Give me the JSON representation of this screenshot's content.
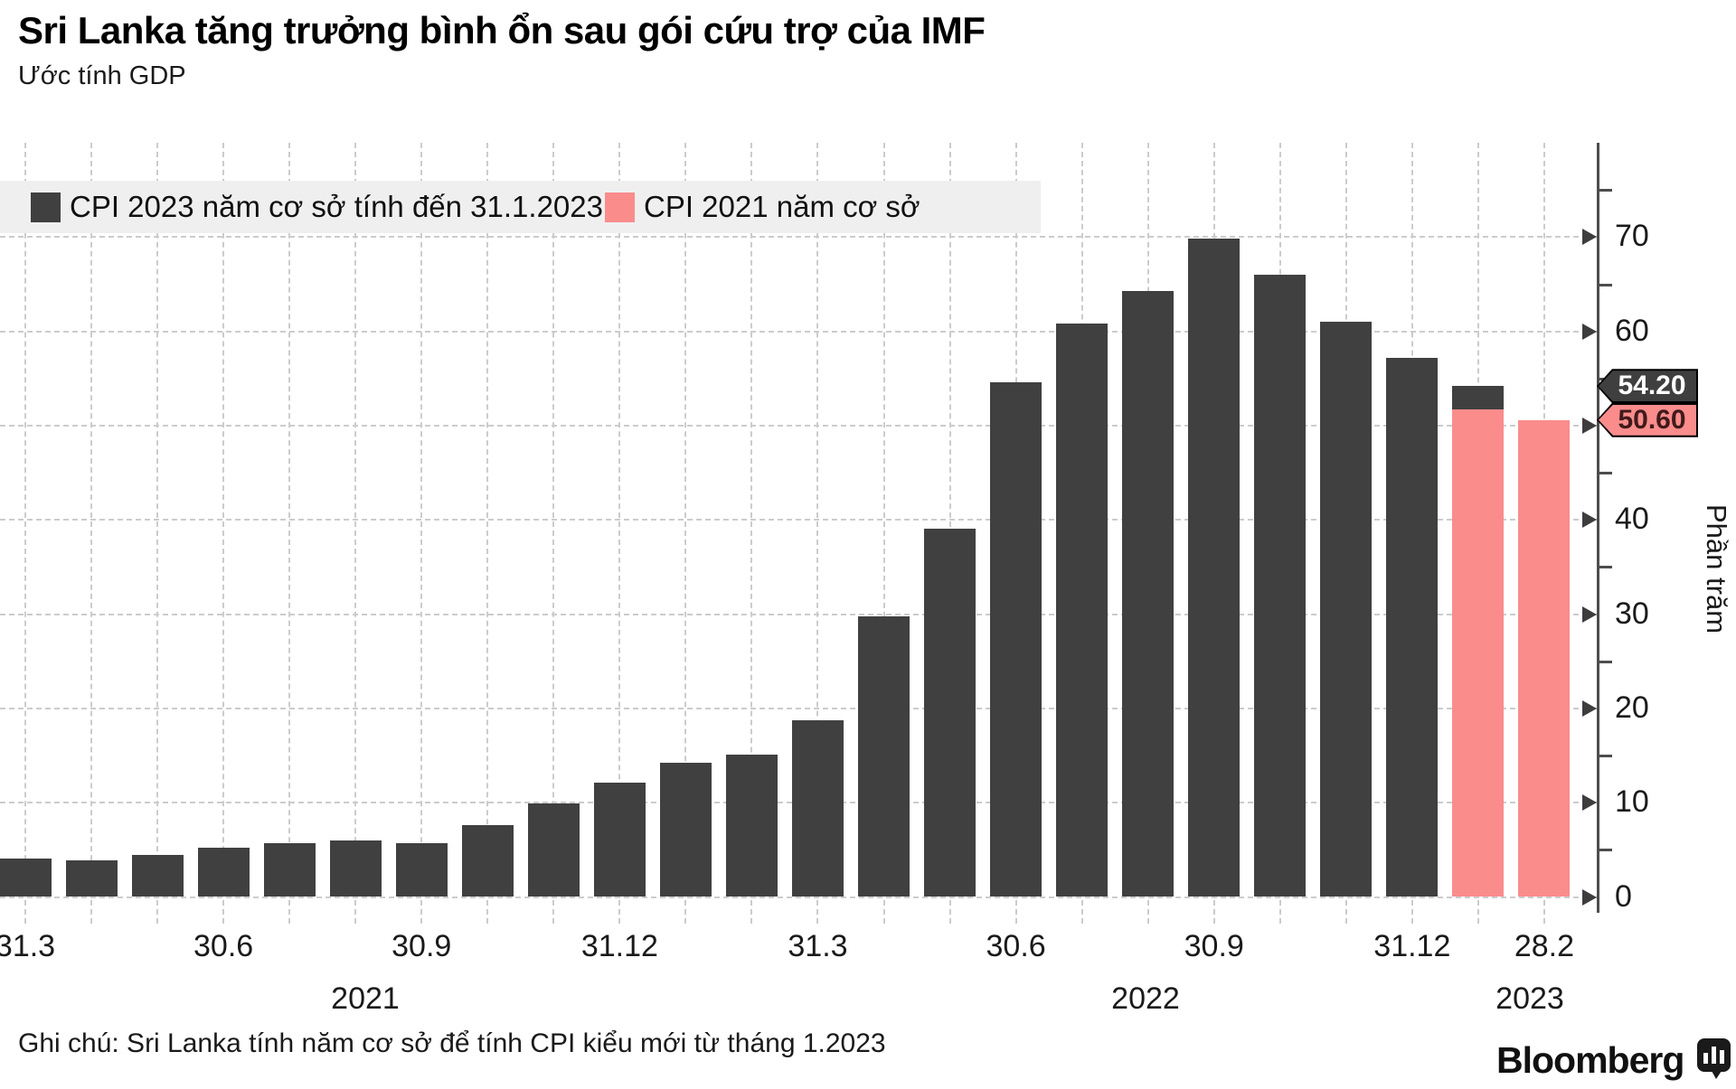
{
  "header": {
    "title": "Sri Lanka tăng trưởng bình ổn sau gói cứu trợ của IMF",
    "subtitle": "Ước tính GDP"
  },
  "legend": {
    "items": [
      {
        "label": "CPI 2023 năm cơ sở tính đến 31.1.2023",
        "color": "#404040"
      },
      {
        "label": "CPI 2021 năm cơ sở",
        "color": "#fa8c8c"
      }
    ]
  },
  "chart_data": {
    "type": "bar",
    "x": [
      "3.2021",
      "4.2021",
      "5.2021",
      "6.2021",
      "7.2021",
      "8.2021",
      "9.2021",
      "10.2021",
      "11.2021",
      "12.2021",
      "1.2022",
      "2.2022",
      "3.2022",
      "4.2022",
      "5.2022",
      "6.2022",
      "7.2022",
      "8.2022",
      "9.2022",
      "10.2022",
      "11.2022",
      "12.2022",
      "1.2023",
      "2.2023"
    ],
    "series": [
      {
        "name": "CPI 2023 năm cơ sở tính đến 31.1.2023",
        "color": "#404040",
        "values": [
          4.1,
          3.9,
          4.5,
          5.2,
          5.7,
          6.0,
          5.7,
          7.6,
          9.9,
          12.1,
          14.2,
          15.1,
          18.7,
          29.8,
          39.1,
          54.6,
          60.8,
          64.3,
          69.8,
          66.0,
          61.0,
          57.2,
          54.2,
          null
        ]
      },
      {
        "name": "CPI 2021 năm cơ sở",
        "color": "#fa8c8c",
        "values": [
          null,
          null,
          null,
          null,
          null,
          null,
          null,
          null,
          null,
          null,
          null,
          null,
          null,
          null,
          null,
          null,
          null,
          null,
          null,
          null,
          null,
          null,
          51.7,
          50.6
        ]
      }
    ],
    "title": "Sri Lanka tăng trưởng bình ổn sau gói cứu trợ của IMF",
    "xlabel": "",
    "ylabel": "Phần trăm",
    "ylim": [
      0,
      75
    ],
    "yticks": [
      0,
      10,
      20,
      30,
      40,
      50,
      60,
      70
    ],
    "grid": "dashed, horizontal every 10 and vertical every month",
    "legend_position": "top-left band",
    "xtick_labels": [
      {
        "label": "31.3",
        "month_index": 0
      },
      {
        "label": "30.6",
        "month_index": 3
      },
      {
        "label": "30.9",
        "month_index": 6
      },
      {
        "label": "31.12",
        "month_index": 9
      },
      {
        "label": "31.3",
        "month_index": 12
      },
      {
        "label": "30.6",
        "month_index": 15
      },
      {
        "label": "30.9",
        "month_index": 18
      },
      {
        "label": "31.12",
        "month_index": 21
      },
      {
        "label": "28.2",
        "month_index": 23
      }
    ],
    "year_labels": [
      {
        "label": "2021"
      },
      {
        "label": "2022"
      },
      {
        "label": "2023"
      }
    ],
    "end_labels": [
      {
        "text": "54.20",
        "value": 54.2,
        "series": 0
      },
      {
        "text": "50.60",
        "value": 50.6,
        "series": 1
      }
    ]
  },
  "footer": {
    "note": "Ghi chú: Sri Lanka tính năm cơ sở để tính CPI kiểu mới từ tháng 1.2023",
    "brand": "Bloomberg"
  }
}
